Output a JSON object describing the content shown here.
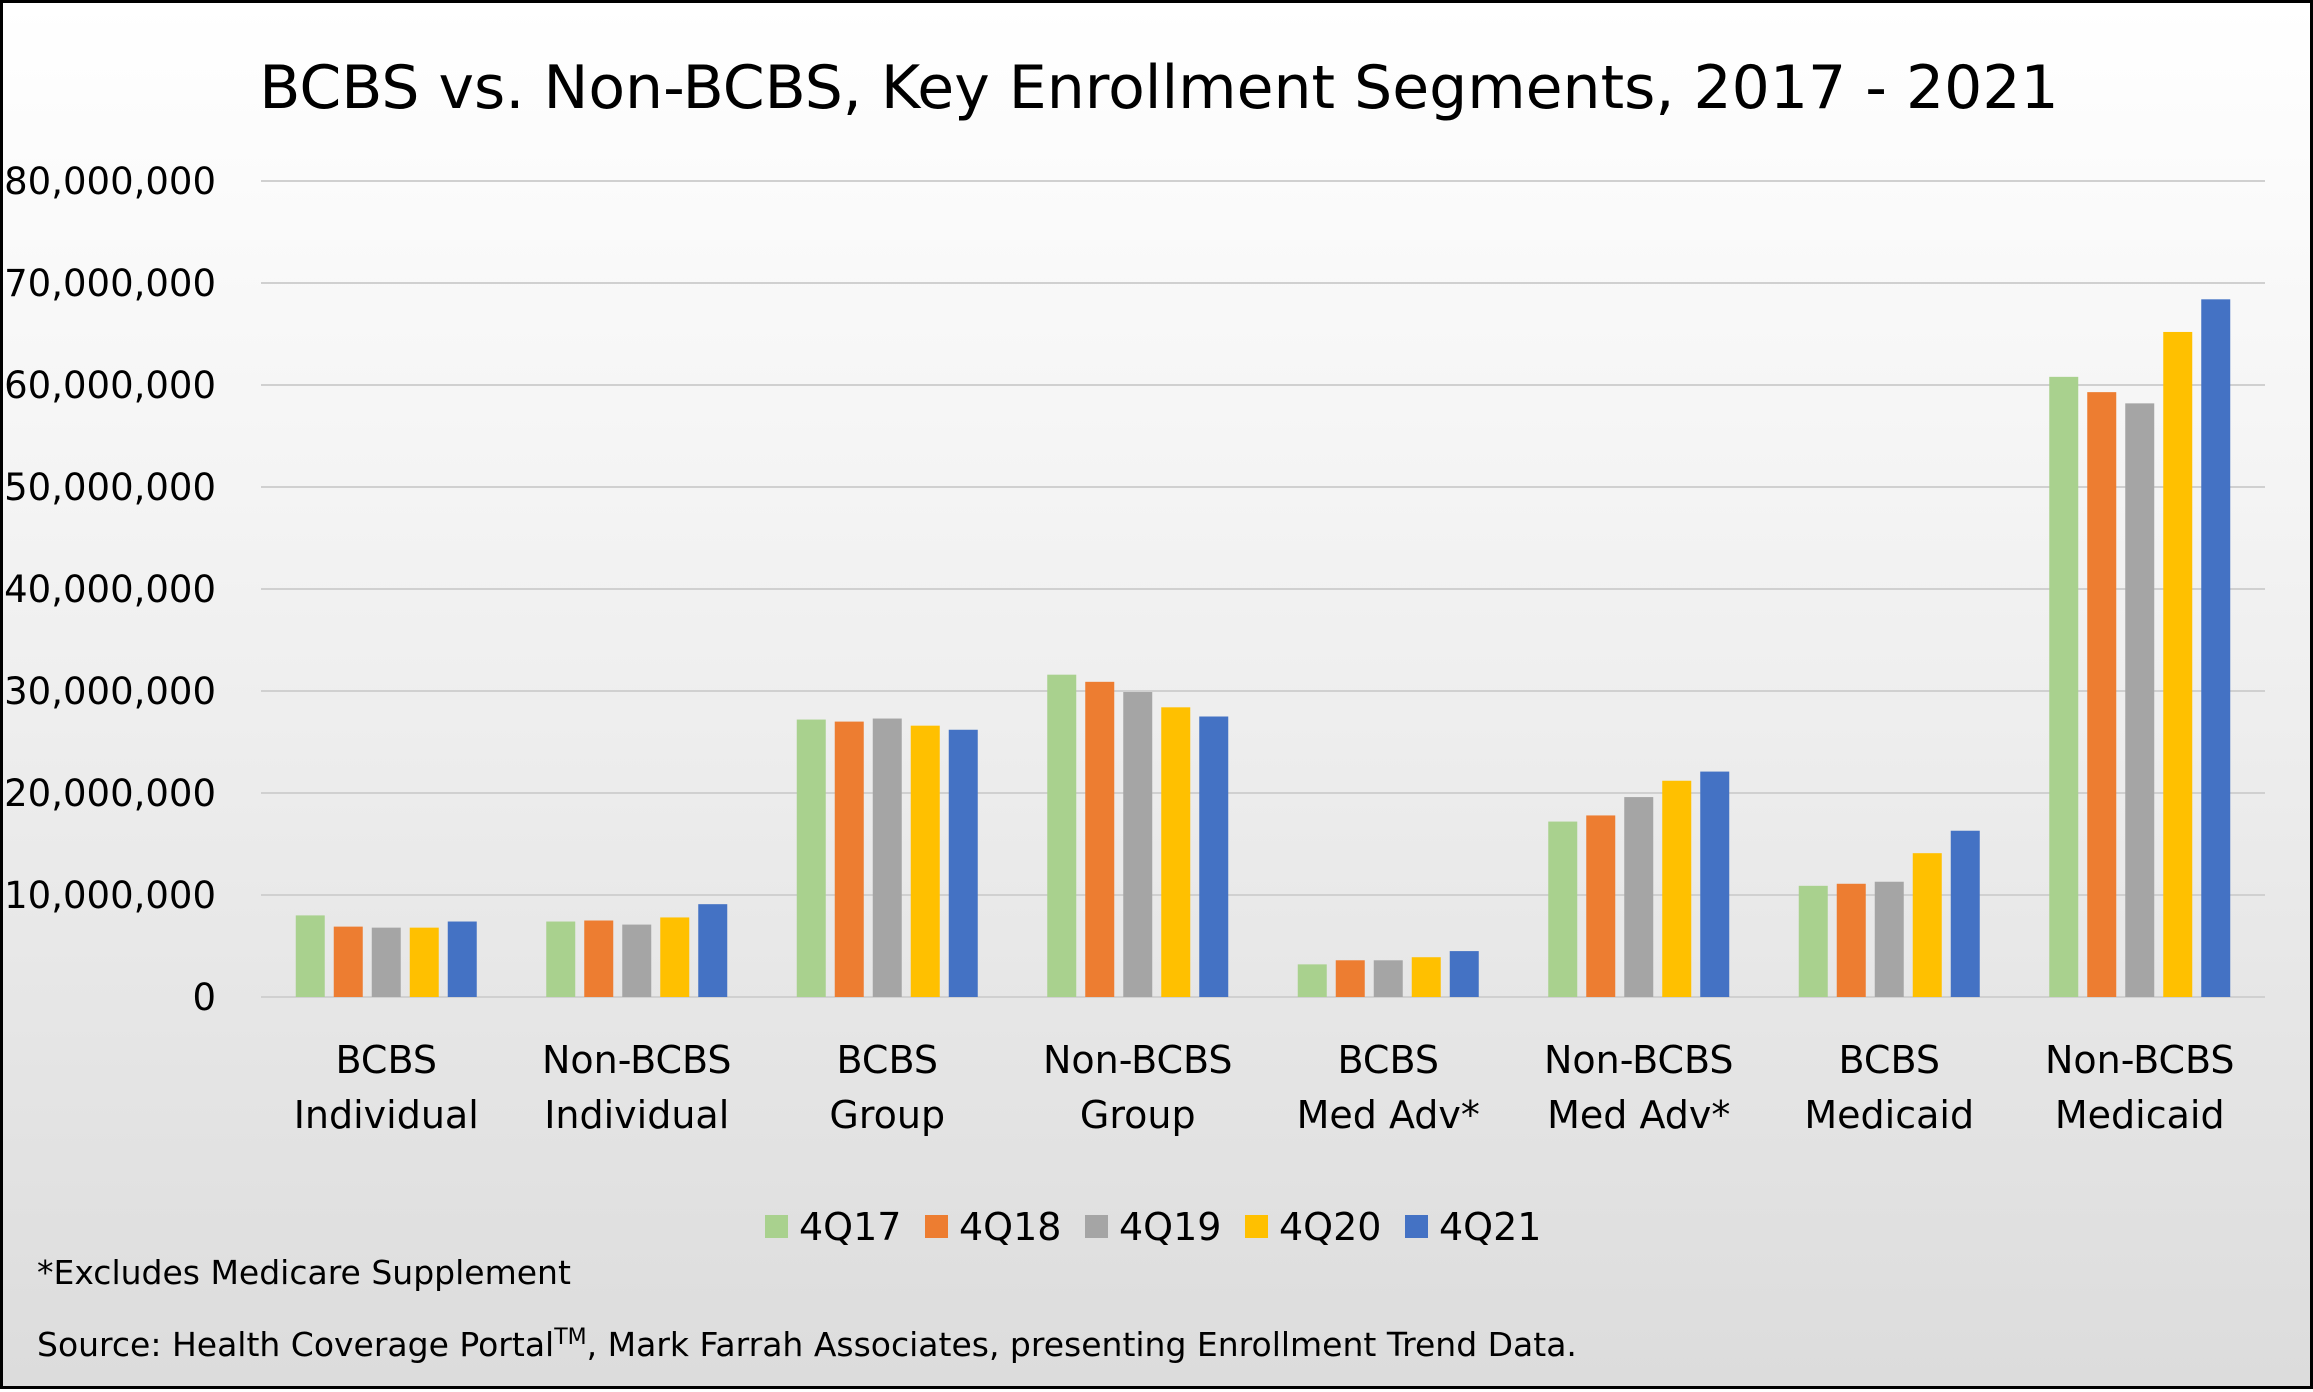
{
  "chart_data": {
    "type": "bar",
    "title": "BCBS vs. Non-BCBS, Key Enrollment Segments, 2017 - 2021",
    "categories": [
      [
        "BCBS",
        "Individual"
      ],
      [
        "Non-BCBS",
        "Individual"
      ],
      [
        "BCBS",
        "Group"
      ],
      [
        "Non-BCBS",
        "Group"
      ],
      [
        "BCBS",
        "Med Adv*"
      ],
      [
        "Non-BCBS",
        "Med Adv*"
      ],
      [
        "BCBS",
        "Medicaid"
      ],
      [
        "Non-BCBS",
        "Medicaid"
      ]
    ],
    "series": [
      {
        "name": "4Q17",
        "color": "#a9d18e",
        "values": [
          8000000,
          7400000,
          27200000,
          31600000,
          3200000,
          17200000,
          10900000,
          60800000
        ]
      },
      {
        "name": "4Q18",
        "color": "#ed7d31",
        "values": [
          6900000,
          7500000,
          27000000,
          30900000,
          3600000,
          17800000,
          11100000,
          59300000
        ]
      },
      {
        "name": "4Q19",
        "color": "#a5a5a5",
        "values": [
          6800000,
          7100000,
          27300000,
          29900000,
          3600000,
          19600000,
          11300000,
          58200000
        ]
      },
      {
        "name": "4Q20",
        "color": "#ffc000",
        "values": [
          6800000,
          7800000,
          26600000,
          28400000,
          3900000,
          21200000,
          14100000,
          65200000
        ]
      },
      {
        "name": "4Q21",
        "color": "#4472c4",
        "values": [
          7400000,
          9100000,
          26200000,
          27500000,
          4500000,
          22100000,
          16300000,
          68400000
        ]
      }
    ],
    "yticks": [
      "0",
      "10,000,000",
      "20,000,000",
      "30,000,000",
      "40,000,000",
      "50,000,000",
      "60,000,000",
      "70,000,000",
      "80,000,000"
    ],
    "ylim": [
      0,
      80000000
    ],
    "grid": true,
    "legend_position": "bottom"
  },
  "notes": {
    "footnote": "*Excludes Medicare Supplement",
    "source_prefix": "Source: Health Coverage Portal",
    "source_tm": "TM",
    "source_suffix": ", Mark Farrah Associates, presenting Enrollment Trend Data."
  }
}
